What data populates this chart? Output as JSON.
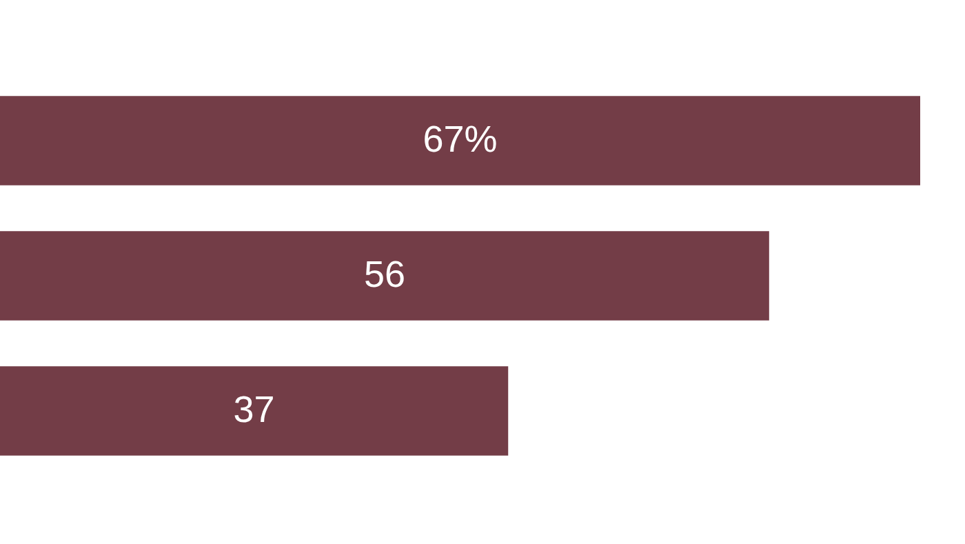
{
  "chart_data": {
    "type": "bar",
    "orientation": "horizontal",
    "categories": [
      null,
      null,
      null
    ],
    "values": [
      67,
      56,
      37
    ],
    "value_labels": [
      "67%",
      "56",
      "37"
    ],
    "color": "#733d47"
  }
}
